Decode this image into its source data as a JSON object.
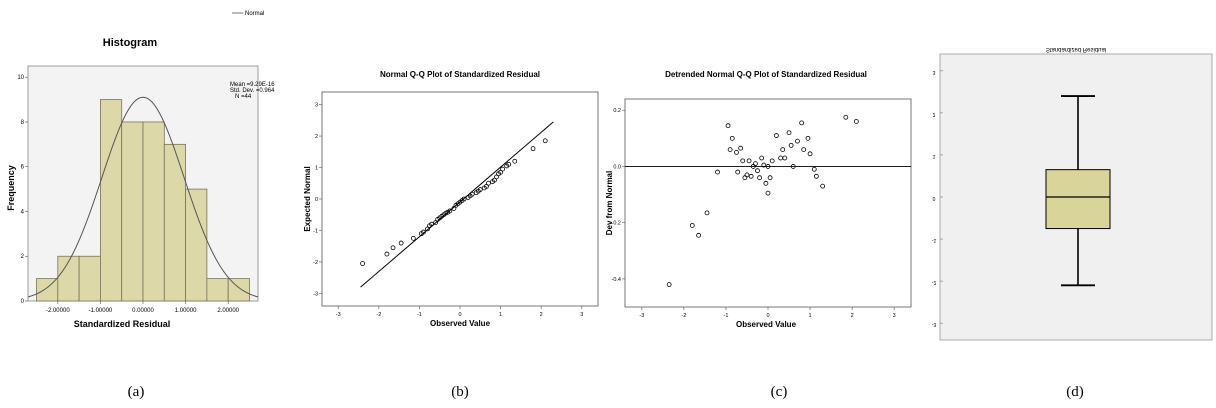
{
  "captions": [
    "(a)",
    "(b)",
    "(c)",
    "(d)"
  ],
  "colors": {
    "bar_fill": "#dcd8a8",
    "bar_stroke": "#77745a",
    "panel_bg": "#f0f0f0",
    "box_fill": "#d9d49a",
    "curve": "#555555"
  },
  "chart_data": [
    {
      "type": "bar",
      "title": "Histogram",
      "xlabel": "Standardized Residual",
      "ylabel": "Frequency",
      "legend": "Normal",
      "stats": [
        "Mean =9.29E-16",
        "Std. Dev. =0.964",
        "N =44"
      ],
      "bin_edges": [
        -2.5,
        -2.0,
        -1.5,
        -1.0,
        -0.5,
        0.0,
        0.5,
        1.0,
        1.5,
        2.0,
        2.5
      ],
      "values": [
        1,
        2,
        2,
        9,
        8,
        8,
        7,
        5,
        1,
        1
      ],
      "xticks": [
        -2,
        -1,
        0,
        1,
        2
      ],
      "xtick_labels": [
        "-2.00000",
        "-1.00000",
        "0.00000",
        "1.00000",
        "2.00000"
      ],
      "yticks": [
        0,
        2,
        4,
        6,
        8,
        10
      ],
      "ytick_labels": [
        "0",
        "2",
        "4",
        "6",
        "8",
        "10"
      ],
      "xlim": [
        -2.7,
        2.7
      ],
      "ylim": [
        0,
        10.5
      ],
      "normal": {
        "mean": 0,
        "sd": 0.964,
        "n": 44,
        "binwidth": 0.5
      }
    },
    {
      "type": "scatter",
      "title": "Normal Q-Q Plot of Standardized Residual",
      "xlabel": "Observed Value",
      "ylabel": "Expected Normal",
      "xlim": [
        -3.4,
        3.4
      ],
      "ylim": [
        -3.4,
        3.4
      ],
      "xticks": [
        -3,
        -2,
        -1,
        0,
        1,
        2,
        3
      ],
      "xtick_labels": [
        "-3",
        "-2",
        "-1",
        "0",
        "1",
        "2",
        "3"
      ],
      "yticks": [
        -3,
        -2,
        -1,
        0,
        1,
        2,
        3
      ],
      "ytick_labels": [
        "-3",
        "-2",
        "-1",
        "0",
        "1",
        "2",
        "3"
      ],
      "reference_line": [
        [
          -2.45,
          -2.8
        ],
        [
          2.3,
          2.45
        ]
      ],
      "x": [
        -2.4,
        -1.8,
        -1.65,
        -1.45,
        -1.15,
        -0.95,
        -0.9,
        -0.8,
        -0.75,
        -0.7,
        -0.6,
        -0.55,
        -0.5,
        -0.45,
        -0.4,
        -0.35,
        -0.3,
        -0.25,
        -0.15,
        -0.1,
        -0.05,
        0.0,
        0.05,
        0.1,
        0.2,
        0.25,
        0.3,
        0.4,
        0.45,
        0.5,
        0.6,
        0.65,
        0.7,
        0.8,
        0.85,
        0.9,
        0.95,
        1.0,
        1.05,
        1.15,
        1.2,
        1.35,
        1.8,
        2.1
      ],
      "y": [
        -2.05,
        -1.75,
        -1.55,
        -1.4,
        -1.25,
        -1.1,
        -1.05,
        -0.95,
        -0.85,
        -0.8,
        -0.75,
        -0.65,
        -0.6,
        -0.55,
        -0.5,
        -0.45,
        -0.42,
        -0.38,
        -0.3,
        -0.2,
        -0.15,
        -0.1,
        -0.05,
        0.0,
        0.05,
        0.1,
        0.15,
        0.2,
        0.25,
        0.3,
        0.35,
        0.4,
        0.5,
        0.55,
        0.6,
        0.7,
        0.8,
        0.85,
        0.95,
        1.05,
        1.1,
        1.2,
        1.6,
        1.85
      ]
    },
    {
      "type": "scatter",
      "title": "Detrended Normal Q-Q Plot of Standardized Residual",
      "xlabel": "Observed Value",
      "ylabel": "Dev from Normal",
      "xlim": [
        -3.4,
        3.4
      ],
      "ylim": [
        -0.5,
        0.24
      ],
      "xticks": [
        -3,
        -2,
        -1,
        0,
        1,
        2,
        3
      ],
      "xtick_labels": [
        "-3",
        "-2",
        "-1",
        "0",
        "1",
        "2",
        "3"
      ],
      "yticks": [
        -0.4,
        -0.2,
        0.0,
        0.2
      ],
      "ytick_labels": [
        "-0.4",
        "-0.2",
        "0.0",
        "0.2"
      ],
      "reference_line": [
        [
          -3.4,
          0.0
        ],
        [
          3.4,
          0.0
        ]
      ],
      "x": [
        -2.35,
        -1.8,
        -1.65,
        -1.45,
        -1.2,
        -0.95,
        -0.9,
        -0.85,
        -0.75,
        -0.72,
        -0.65,
        -0.6,
        -0.55,
        -0.5,
        -0.45,
        -0.4,
        -0.35,
        -0.3,
        -0.25,
        -0.2,
        -0.15,
        -0.1,
        -0.05,
        0.0,
        0.0,
        0.05,
        0.1,
        0.2,
        0.3,
        0.35,
        0.4,
        0.5,
        0.55,
        0.6,
        0.7,
        0.8,
        0.85,
        0.95,
        1.0,
        1.1,
        1.15,
        1.3,
        1.85,
        2.1
      ],
      "y": [
        -0.42,
        -0.21,
        -0.245,
        -0.165,
        -0.02,
        0.145,
        0.06,
        0.1,
        0.05,
        -0.02,
        0.065,
        0.02,
        -0.04,
        -0.03,
        0.02,
        -0.035,
        0.0,
        0.01,
        -0.015,
        -0.04,
        0.03,
        0.005,
        -0.06,
        -0.095,
        0.0,
        -0.04,
        0.02,
        0.11,
        0.03,
        0.06,
        0.03,
        0.12,
        0.075,
        0.0,
        0.09,
        0.155,
        0.06,
        0.1,
        0.045,
        -0.01,
        -0.035,
        -0.07,
        0.175,
        0.16
      ]
    },
    {
      "type": "box",
      "title": "Standardized Residual",
      "ylim": [
        -3.4,
        3.4
      ],
      "yticks": [
        -3,
        -2,
        -1,
        0,
        1,
        2,
        3
      ],
      "ytick_labels": [
        "-3",
        "-2",
        "-1",
        "0",
        "1",
        "2",
        "3"
      ],
      "min": -2.1,
      "q1": -0.75,
      "median": 0.0,
      "q3": 0.65,
      "max": 2.4
    }
  ]
}
